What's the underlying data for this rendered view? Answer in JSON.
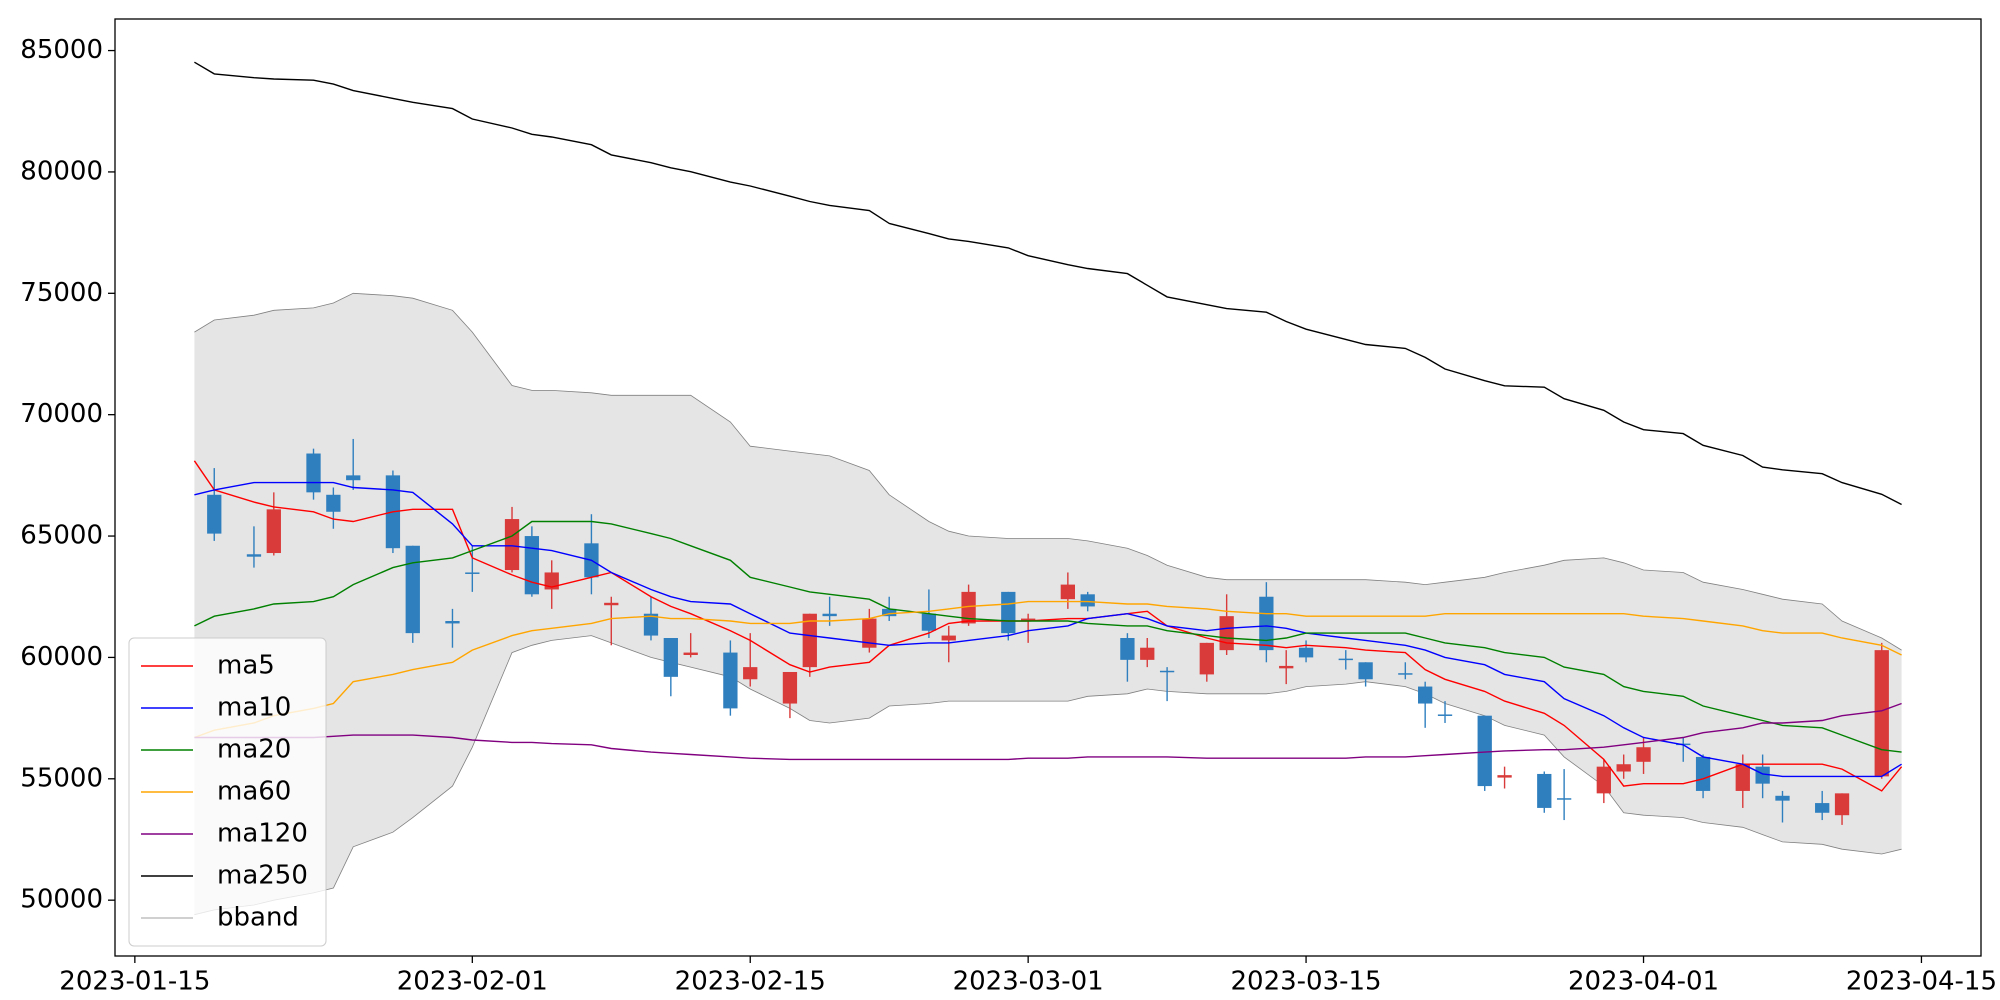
{
  "chart_data": {
    "type": "candlestick",
    "x": [
      "2023-01-18",
      "2023-01-19",
      "2023-01-21",
      "2023-01-22",
      "2023-01-24",
      "2023-01-25",
      "2023-01-26",
      "2023-01-28",
      "2023-01-29",
      "2023-01-31",
      "2023-02-01",
      "2023-02-03",
      "2023-02-04",
      "2023-02-05",
      "2023-02-07",
      "2023-02-08",
      "2023-02-10",
      "2023-02-11",
      "2023-02-12",
      "2023-02-14",
      "2023-02-15",
      "2023-02-17",
      "2023-02-18",
      "2023-02-19",
      "2023-02-21",
      "2023-02-22",
      "2023-02-24",
      "2023-02-25",
      "2023-02-26",
      "2023-02-28",
      "2023-03-01",
      "2023-03-03",
      "2023-03-04",
      "2023-03-06",
      "2023-03-07",
      "2023-03-08",
      "2023-03-10",
      "2023-03-11",
      "2023-03-13",
      "2023-03-14",
      "2023-03-15",
      "2023-03-17",
      "2023-03-18",
      "2023-03-20",
      "2023-03-21",
      "2023-03-22",
      "2023-03-24",
      "2023-03-25",
      "2023-03-27",
      "2023-03-28",
      "2023-03-30",
      "2023-03-31",
      "2023-04-01",
      "2023-04-03",
      "2023-04-04",
      "2023-04-06",
      "2023-04-07",
      "2023-04-08",
      "2023-04-10",
      "2023-04-11",
      "2023-04-13",
      "2023-04-14"
    ],
    "open": [
      null,
      66700,
      64250,
      64300,
      68400,
      66700,
      67500,
      67500,
      64600,
      61500,
      63500,
      63600,
      65000,
      62800,
      64700,
      62150,
      61800,
      60800,
      60100,
      60200,
      59100,
      58100,
      59600,
      61800,
      60400,
      62000,
      61800,
      60700,
      61400,
      62700,
      61500,
      62400,
      62600,
      60800,
      59900,
      59450,
      59300,
      60300,
      62500,
      59550,
      60400,
      59950,
      59800,
      59350,
      58800,
      57650,
      57600,
      55050,
      55200,
      54200,
      54400,
      55300,
      55700,
      56450,
      55900,
      54500,
      55500,
      54300,
      54000,
      53500,
      55100,
      null
    ],
    "high": [
      null,
      67800,
      65400,
      66800,
      68600,
      67000,
      69000,
      67700,
      64600,
      62000,
      64600,
      66200,
      65400,
      64000,
      65900,
      62500,
      62500,
      60800,
      61000,
      60700,
      61000,
      59400,
      61800,
      62500,
      62000,
      62500,
      62800,
      61300,
      63000,
      62700,
      61800,
      63500,
      62700,
      61000,
      60800,
      59600,
      60600,
      62600,
      63100,
      60300,
      60700,
      60300,
      59800,
      59800,
      59000,
      58200,
      57600,
      55500,
      55300,
      55400,
      55800,
      56000,
      56700,
      56700,
      56000,
      56000,
      56000,
      54500,
      54500,
      54400,
      60600,
      null
    ],
    "low": [
      null,
      64800,
      63700,
      64200,
      66500,
      65300,
      66900,
      64300,
      60600,
      60400,
      62700,
      63500,
      62500,
      62000,
      62600,
      60500,
      60700,
      58400,
      60000,
      57600,
      58800,
      57500,
      59200,
      61300,
      60200,
      61500,
      60800,
      59800,
      61300,
      60700,
      60600,
      62000,
      61900,
      59000,
      59600,
      58200,
      59000,
      60100,
      59800,
      58900,
      59800,
      59500,
      58800,
      59100,
      57100,
      57300,
      54500,
      54600,
      53600,
      53300,
      54000,
      55000,
      55200,
      55700,
      54200,
      53800,
      54200,
      53200,
      53300,
      53100,
      55000,
      null
    ],
    "close": [
      null,
      65100,
      64150,
      66100,
      66800,
      66000,
      67300,
      64500,
      61000,
      61400,
      63450,
      65700,
      62600,
      63500,
      63300,
      62250,
      60900,
      59200,
      60200,
      57900,
      59600,
      59400,
      61800,
      61700,
      61600,
      61700,
      61100,
      60900,
      62700,
      61000,
      61600,
      63000,
      62100,
      59900,
      60400,
      59400,
      60600,
      61700,
      60300,
      59650,
      60000,
      59900,
      59100,
      59300,
      58100,
      57600,
      54700,
      55150,
      53800,
      54150,
      55500,
      55600,
      56300,
      56400,
      54500,
      55600,
      54800,
      54100,
      53600,
      54400,
      60300,
      null
    ],
    "up_color": "#d93a3a",
    "down_color": "#2f7fbf",
    "series": [
      {
        "name": "ma5",
        "color": "#ff0000",
        "values": [
          68100,
          66900,
          66400,
          66200,
          66000,
          65700,
          65600,
          66000,
          66100,
          66100,
          64100,
          63400,
          63100,
          62900,
          63300,
          63500,
          62500,
          62100,
          61800,
          61100,
          60700,
          59700,
          59400,
          59600,
          59800,
          60500,
          61000,
          61400,
          61500,
          61500,
          61500,
          61600,
          61600,
          61800,
          61900,
          61300,
          60800,
          60600,
          60500,
          60400,
          60500,
          60400,
          60300,
          60200,
          59500,
          59100,
          58600,
          58200,
          57700,
          57200,
          55800,
          54700,
          54800,
          54800,
          55000,
          55600,
          55600,
          55600,
          55600,
          55400,
          54500,
          55500
        ]
      },
      {
        "name": "ma10",
        "color": "#0000ff",
        "values": [
          66700,
          66900,
          67200,
          67200,
          67200,
          67200,
          67000,
          66900,
          66800,
          65500,
          64600,
          64600,
          64500,
          64400,
          64000,
          63500,
          62800,
          62500,
          62300,
          62200,
          61800,
          61000,
          60900,
          60800,
          60600,
          60500,
          60600,
          60600,
          60700,
          60900,
          61100,
          61300,
          61600,
          61800,
          61600,
          61300,
          61100,
          61200,
          61300,
          61200,
          61000,
          60800,
          60700,
          60500,
          60300,
          60000,
          59700,
          59300,
          59000,
          58300,
          57600,
          57100,
          56700,
          56400,
          55900,
          55600,
          55200,
          55100,
          55100,
          55100,
          55100,
          55600
        ]
      },
      {
        "name": "ma20",
        "color": "#008000",
        "values": [
          61300,
          61700,
          62000,
          62200,
          62300,
          62500,
          63000,
          63700,
          63900,
          64100,
          64400,
          65000,
          65600,
          65600,
          65600,
          65500,
          65100,
          64900,
          64600,
          64000,
          63300,
          62900,
          62700,
          62600,
          62400,
          62000,
          61800,
          61700,
          61600,
          61500,
          61500,
          61500,
          61400,
          61300,
          61300,
          61100,
          60900,
          60800,
          60700,
          60800,
          61000,
          61000,
          61000,
          61000,
          60800,
          60600,
          60400,
          60200,
          60000,
          59600,
          59300,
          58800,
          58600,
          58400,
          58000,
          57600,
          57400,
          57200,
          57100,
          56800,
          56200,
          56100
        ]
      },
      {
        "name": "ma60",
        "color": "#ffa500",
        "values": [
          56700,
          57000,
          57300,
          57600,
          57900,
          58100,
          59000,
          59300,
          59500,
          59800,
          60300,
          60900,
          61100,
          61200,
          61400,
          61600,
          61700,
          61600,
          61600,
          61500,
          61400,
          61400,
          61500,
          61500,
          61600,
          61800,
          61900,
          62000,
          62100,
          62200,
          62300,
          62300,
          62300,
          62200,
          62200,
          62100,
          62000,
          61900,
          61800,
          61800,
          61700,
          61700,
          61700,
          61700,
          61700,
          61800,
          61800,
          61800,
          61800,
          61800,
          61800,
          61800,
          61700,
          61600,
          61500,
          61300,
          61100,
          61000,
          61000,
          60800,
          60500,
          60100
        ]
      },
      {
        "name": "ma120",
        "color": "#800080",
        "values": [
          56700,
          56700,
          56700,
          56700,
          56700,
          56750,
          56800,
          56800,
          56800,
          56700,
          56600,
          56500,
          56500,
          56450,
          56400,
          56250,
          56100,
          56050,
          56000,
          55900,
          55850,
          55800,
          55800,
          55800,
          55800,
          55800,
          55800,
          55800,
          55800,
          55800,
          55850,
          55850,
          55900,
          55900,
          55900,
          55900,
          55850,
          55850,
          55850,
          55850,
          55850,
          55850,
          55900,
          55900,
          55950,
          56000,
          56100,
          56150,
          56200,
          56200,
          56300,
          56400,
          56500,
          56700,
          56900,
          57100,
          57300,
          57300,
          57400,
          57600,
          57800,
          58100
        ]
      },
      {
        "name": "ma250",
        "color": "#000000",
        "values": [
          84520,
          84040,
          83880,
          83830,
          83780,
          83620,
          83350,
          83030,
          82870,
          82610,
          82180,
          81810,
          81550,
          81440,
          81120,
          80700,
          80380,
          80170,
          80010,
          79580,
          79420,
          79000,
          78780,
          78620,
          78410,
          77880,
          77460,
          77240,
          77140,
          76870,
          76550,
          76180,
          76020,
          75810,
          75330,
          74850,
          74530,
          74370,
          74220,
          73840,
          73520,
          73100,
          72890,
          72730,
          72360,
          71880,
          71400,
          71190,
          71130,
          70660,
          70180,
          69700,
          69380,
          69220,
          68740,
          68320,
          67840,
          67730,
          67570,
          67200,
          66720,
          66300
        ]
      }
    ],
    "bband": {
      "name": "bband",
      "color": "#808080",
      "fill": "#e5e5e5",
      "upper": [
        73400,
        73900,
        74100,
        74300,
        74400,
        74600,
        75000,
        74900,
        74800,
        74300,
        73400,
        71200,
        71000,
        71000,
        70900,
        70800,
        70800,
        70800,
        70800,
        69700,
        68700,
        68500,
        68400,
        68300,
        67700,
        66700,
        65600,
        65200,
        65000,
        64900,
        64900,
        64900,
        64800,
        64500,
        64200,
        63800,
        63300,
        63200,
        63200,
        63200,
        63200,
        63200,
        63200,
        63100,
        63000,
        63100,
        63300,
        63500,
        63800,
        64000,
        64100,
        63900,
        63600,
        63500,
        63100,
        62800,
        62600,
        62400,
        62200,
        61500,
        60800,
        60300
      ],
      "lower": [
        49400,
        49600,
        49800,
        50000,
        50300,
        50500,
        52200,
        52800,
        53400,
        54700,
        56300,
        60200,
        60500,
        60700,
        60900,
        60600,
        60000,
        59800,
        59600,
        59200,
        58700,
        57900,
        57400,
        57300,
        57500,
        58000,
        58100,
        58200,
        58200,
        58200,
        58200,
        58200,
        58400,
        58500,
        58700,
        58600,
        58500,
        58500,
        58500,
        58600,
        58800,
        58900,
        59000,
        58800,
        58500,
        58100,
        57600,
        57200,
        56800,
        55900,
        54700,
        53600,
        53500,
        53400,
        53200,
        53000,
        52700,
        52400,
        52300,
        52100,
        51900,
        52100
      ]
    },
    "xlim": [
      "2023-01-14",
      "2023-04-18"
    ],
    "xticks": [
      "2023-01-15",
      "2023-02-01",
      "2023-02-15",
      "2023-03-01",
      "2023-03-15",
      "2023-04-01",
      "2023-04-15"
    ],
    "ylim": [
      47700,
      86300
    ],
    "yticks": [
      50000,
      55000,
      60000,
      65000,
      70000,
      75000,
      80000,
      85000
    ],
    "legend": "lower left"
  }
}
